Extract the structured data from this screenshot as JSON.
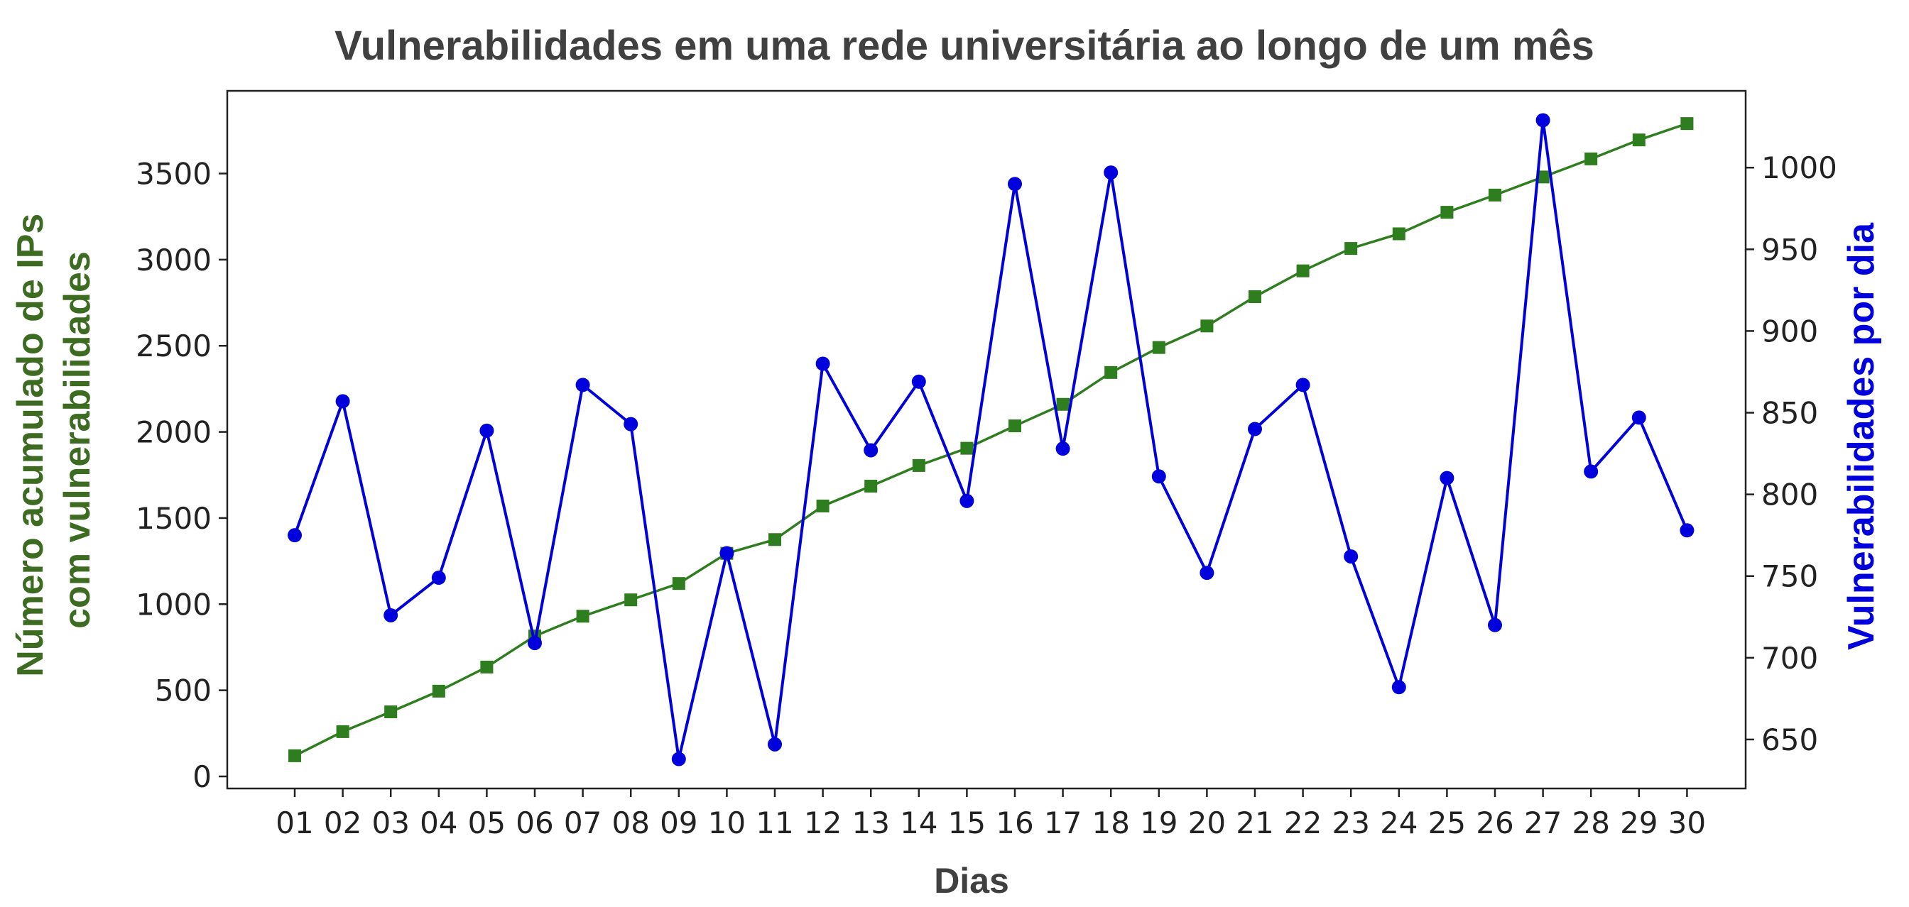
{
  "chart_data": {
    "type": "line",
    "title": "Vulnerabilidades em uma rede universitária ao longo de um mês",
    "xlabel": "Dias",
    "ylabel_left": [
      "Número acumulado de IPs",
      "com vulnerabilidades"
    ],
    "ylabel_right": "Vulnerabilidades por dia",
    "categories": [
      "01",
      "02",
      "03",
      "04",
      "05",
      "06",
      "07",
      "08",
      "09",
      "10",
      "11",
      "12",
      "13",
      "14",
      "15",
      "16",
      "17",
      "18",
      "19",
      "20",
      "21",
      "22",
      "23",
      "24",
      "25",
      "26",
      "27",
      "28",
      "29",
      "30"
    ],
    "left_axis": {
      "ylim": [
        -70,
        3980
      ],
      "ticks": [
        0,
        500,
        1000,
        1500,
        2000,
        2500,
        3000,
        3500
      ]
    },
    "right_axis": {
      "ylim": [
        620,
        1047
      ],
      "ticks": [
        650,
        700,
        750,
        800,
        850,
        900,
        950,
        1000
      ]
    },
    "grid": false,
    "series": [
      {
        "axis": "left",
        "color": "#2e7d1e",
        "marker": "square",
        "values": [
          120,
          260,
          375,
          495,
          635,
          815,
          930,
          1025,
          1120,
          1295,
          1375,
          1570,
          1685,
          1805,
          1905,
          2035,
          2160,
          2345,
          2490,
          2615,
          2785,
          2935,
          3065,
          3150,
          3275,
          3375,
          3480,
          3585,
          3695,
          3790
        ]
      },
      {
        "axis": "right",
        "color": "#0000dd",
        "marker": "circle",
        "values": [
          775,
          857,
          726,
          749,
          839,
          709,
          867,
          843,
          638,
          764,
          647,
          880,
          827,
          869,
          796,
          990,
          828,
          997,
          811,
          752,
          840,
          867,
          762,
          682,
          810,
          720,
          1029,
          814,
          847,
          778
        ]
      }
    ],
    "colors": {
      "left_label": "#3d6b21",
      "right_label": "#0000dd",
      "title": "#404040",
      "xlabel": "#404040"
    }
  }
}
